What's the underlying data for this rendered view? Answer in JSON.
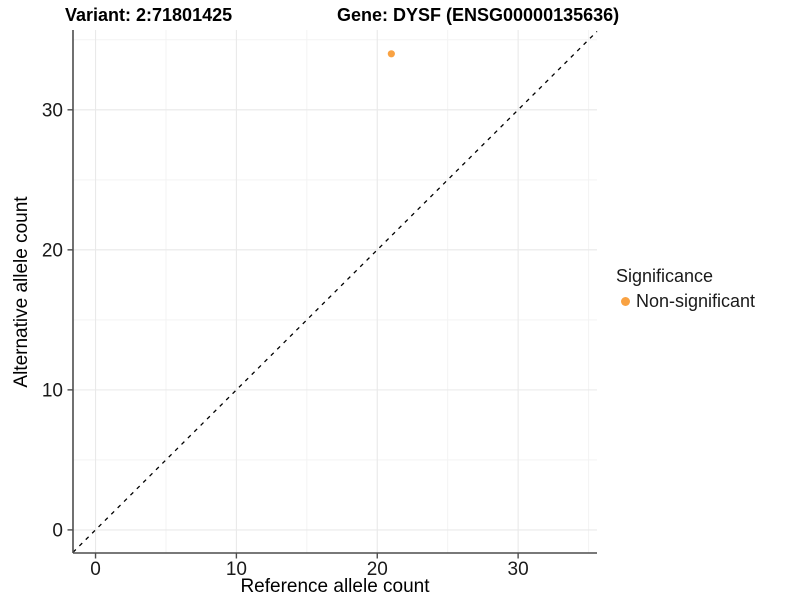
{
  "chart_data": {
    "type": "scatter",
    "title_left": "Variant: 2:71801425",
    "title_right": "Gene: DYSF (ENSG00000135636)",
    "xlabel": "Reference allele count",
    "ylabel": "Alternative allele count",
    "xlim": [
      -1.6,
      35.6
    ],
    "ylim": [
      -1.65,
      35.7
    ],
    "x_major_ticks": [
      0,
      10,
      20,
      30
    ],
    "y_major_ticks": [
      0,
      10,
      20,
      30
    ],
    "x_minor_ticks": [
      5,
      15,
      25,
      35
    ],
    "y_minor_ticks": [
      5,
      15,
      25,
      35
    ],
    "grid": true,
    "reference_line": {
      "type": "identity",
      "slope": 1,
      "intercept": 0,
      "style": "dashed",
      "color": "#000000"
    },
    "series": [
      {
        "name": "Non-significant",
        "color": "#F9A242",
        "points": [
          {
            "x": 21,
            "y": 34
          }
        ]
      }
    ],
    "legend": {
      "title": "Significance",
      "position": "right",
      "entries": [
        {
          "label": "Non-significant",
          "color": "#F9A242"
        }
      ]
    },
    "colors": {
      "point": "#F9A242",
      "grid_major": "#e9e9e9",
      "grid_minor": "#f3f3f3",
      "axis_line": "#4d4d4d",
      "tick_label": "#1a1a1a",
      "background": "#ffffff"
    }
  }
}
